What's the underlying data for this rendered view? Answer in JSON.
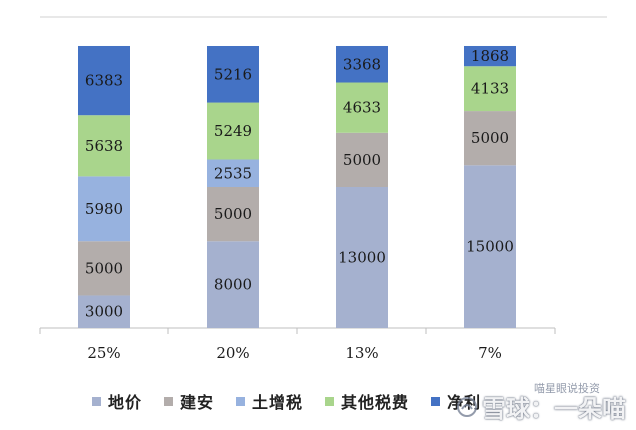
{
  "chart_data": {
    "type": "bar",
    "stacked": true,
    "categories": [
      "25%",
      "20%",
      "13%",
      "7%"
    ],
    "series": [
      {
        "name": "地价",
        "color": "#a5b1cf",
        "values": [
          3000,
          8000,
          13000,
          15000
        ]
      },
      {
        "name": "建安",
        "color": "#b3adab",
        "values": [
          5000,
          5000,
          5000,
          5000
        ]
      },
      {
        "name": "土增税",
        "color": "#97b2df",
        "values": [
          5980,
          2535,
          0,
          0
        ]
      },
      {
        "name": "其他税费",
        "color": "#a9d58c",
        "values": [
          5638,
          5249,
          4633,
          4133
        ]
      },
      {
        "name": "净利",
        "color": "#4472c4",
        "values": [
          6383,
          5216,
          3368,
          1868
        ]
      }
    ],
    "segment_labels": [
      [
        "3000",
        "5000",
        "5980",
        "5638",
        "6383"
      ],
      [
        "8000",
        "5000",
        "2535",
        "5249",
        "5216"
      ],
      [
        "13000",
        "5000",
        "0",
        "4633",
        "3368"
      ],
      [
        "15000",
        "5000",
        "0",
        "4133",
        "1868"
      ]
    ],
    "legend_labels": [
      "地价",
      "建安",
      "土增税",
      "其他税费",
      "净利"
    ],
    "ylim": [
      0,
      26000
    ],
    "grid": false,
    "legend_position": "bottom",
    "title": "",
    "xlabel": "",
    "ylabel": ""
  },
  "watermark": {
    "line1": "雪球",
    "sep": "：",
    "line2": "一朵喵",
    "small": "喵星眼说投资"
  }
}
